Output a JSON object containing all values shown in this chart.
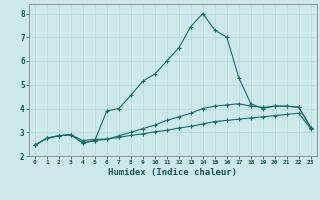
{
  "xlabel": "Humidex (Indice chaleur)",
  "bg_color": "#cce8e8",
  "line_color": "#1a6b6b",
  "grid_color": "#b8d8d8",
  "xlim": [
    -0.5,
    23.5
  ],
  "ylim": [
    2.0,
    8.4
  ],
  "yticks": [
    2,
    3,
    4,
    5,
    6,
    7,
    8
  ],
  "xticks": [
    0,
    1,
    2,
    3,
    4,
    5,
    6,
    7,
    8,
    9,
    10,
    11,
    12,
    13,
    14,
    15,
    16,
    17,
    18,
    19,
    20,
    21,
    22,
    23
  ],
  "curve1_x": [
    0,
    1,
    2,
    3,
    4,
    5,
    6,
    7,
    8,
    9,
    10,
    11,
    12,
    13,
    14,
    15,
    16,
    17,
    18,
    19,
    20,
    21,
    22,
    23
  ],
  "curve1_y": [
    2.45,
    2.75,
    2.85,
    2.9,
    2.65,
    2.7,
    2.72,
    2.78,
    2.87,
    2.93,
    3.02,
    3.08,
    3.18,
    3.25,
    3.35,
    3.45,
    3.5,
    3.55,
    3.6,
    3.65,
    3.7,
    3.75,
    3.8,
    3.15
  ],
  "curve2_x": [
    0,
    1,
    2,
    3,
    4,
    5,
    6,
    7,
    8,
    9,
    10,
    11,
    12,
    13,
    14,
    15,
    16,
    17,
    18,
    19,
    20,
    21,
    22,
    23
  ],
  "curve2_y": [
    2.45,
    2.75,
    2.85,
    2.9,
    2.55,
    2.65,
    2.7,
    2.85,
    3.0,
    3.15,
    3.3,
    3.5,
    3.65,
    3.8,
    4.0,
    4.1,
    4.15,
    4.2,
    4.1,
    4.05,
    4.1,
    4.1,
    4.05,
    3.2
  ],
  "curve3_x": [
    0,
    1,
    2,
    3,
    4,
    5,
    6,
    7,
    8,
    9,
    10,
    11,
    12,
    13,
    14,
    15,
    16,
    17,
    18,
    19,
    20,
    21,
    22,
    23
  ],
  "curve3_y": [
    2.45,
    2.75,
    2.85,
    2.9,
    2.55,
    2.65,
    3.9,
    4.0,
    4.55,
    5.15,
    5.45,
    6.0,
    6.55,
    7.45,
    8.0,
    7.3,
    7.0,
    5.3,
    4.2,
    4.0,
    4.1,
    4.1,
    4.05,
    3.2
  ]
}
